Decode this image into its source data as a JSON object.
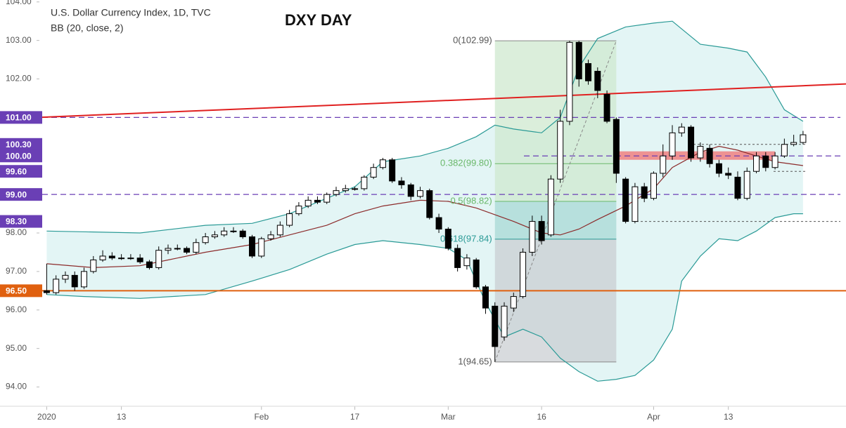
{
  "chart_data": {
    "type": "candlestick",
    "title": "U.S. Dollar Currency Index, 1D, TVC",
    "headline": "DXY DAY",
    "ylim": [
      93.5,
      104.05
    ],
    "xlim": [
      -5,
      85.6
    ],
    "yticks": [
      {
        "value": 94,
        "label": "94.00"
      },
      {
        "value": 95,
        "label": "95.00"
      },
      {
        "value": 96,
        "label": "96.00"
      },
      {
        "value": 97,
        "label": "97.00"
      },
      {
        "value": 98,
        "label": "98.00"
      },
      {
        "value": 99,
        "label": "99.00"
      },
      {
        "value": 100,
        "label": "100.00"
      },
      {
        "value": 101,
        "label": "101.00"
      },
      {
        "value": 102,
        "label": "102.00"
      },
      {
        "value": 103,
        "label": "103.00"
      },
      {
        "value": 104,
        "label": "104.00"
      }
    ],
    "xticks": [
      {
        "value": 0,
        "label": "2020"
      },
      {
        "value": 8,
        "label": "13"
      },
      {
        "value": 23,
        "label": "Feb"
      },
      {
        "value": 33,
        "label": "17"
      },
      {
        "value": 43,
        "label": "Mar"
      },
      {
        "value": 53,
        "label": "16"
      },
      {
        "value": 65,
        "label": "Apr"
      },
      {
        "value": 73,
        "label": "13"
      }
    ],
    "up_color": "#ffffff",
    "down_color": "#000000",
    "ohlc": {
      "open": [
        96.5,
        96.45,
        96.8,
        96.9,
        96.6,
        97.0,
        97.3,
        97.4,
        97.35,
        97.35,
        97.35,
        97.25,
        97.1,
        97.55,
        97.6,
        97.6,
        97.5,
        97.75,
        97.9,
        97.95,
        98.05,
        98.05,
        97.9,
        97.4,
        97.85,
        97.95,
        98.2,
        98.5,
        98.7,
        98.85,
        98.8,
        99.0,
        99.1,
        99.15,
        99.15,
        99.45,
        99.7,
        99.9,
        99.35,
        99.25,
        98.95,
        99.1,
        98.4,
        98.1,
        97.6,
        97.15,
        97.3,
        96.6,
        96.1,
        95.3,
        96.05,
        96.35,
        97.5,
        98.3,
        97.95,
        99.4,
        100.9,
        102.95,
        102.4,
        102.2,
        101.6,
        100.95,
        99.4,
        98.3,
        99.2,
        98.9,
        99.55,
        100.0,
        100.6,
        100.75,
        99.95,
        100.2,
        99.8,
        99.55,
        99.45,
        98.9,
        99.6,
        100.0,
        99.7,
        100.0,
        100.3,
        100.35
      ],
      "high": [
        97.2,
        96.9,
        97.0,
        97.0,
        97.1,
        97.4,
        97.55,
        97.5,
        97.45,
        97.45,
        97.45,
        97.3,
        97.65,
        97.7,
        97.7,
        97.65,
        97.85,
        98.0,
        98.05,
        98.15,
        98.15,
        98.1,
        97.95,
        97.9,
        98.05,
        98.3,
        98.6,
        98.8,
        98.95,
        98.95,
        99.05,
        99.2,
        99.25,
        99.2,
        99.5,
        99.8,
        99.95,
        99.95,
        99.45,
        99.3,
        99.2,
        99.15,
        98.5,
        98.15,
        97.7,
        97.45,
        97.35,
        96.65,
        96.2,
        96.2,
        96.45,
        97.6,
        98.45,
        98.45,
        99.5,
        101.2,
        102.99,
        102.99,
        102.5,
        102.3,
        101.7,
        101.0,
        99.45,
        99.3,
        99.3,
        99.6,
        100.3,
        100.8,
        100.85,
        100.8,
        100.35,
        100.3,
        99.9,
        99.7,
        99.6,
        99.7,
        100.1,
        100.1,
        100.1,
        100.45,
        100.55,
        100.65
      ],
      "low": [
        96.4,
        96.4,
        96.7,
        96.5,
        96.55,
        96.95,
        97.25,
        97.3,
        97.3,
        97.3,
        97.2,
        97.05,
        97.05,
        97.45,
        97.55,
        97.45,
        97.45,
        97.7,
        97.85,
        97.9,
        98.0,
        97.85,
        97.35,
        97.35,
        97.8,
        97.9,
        98.15,
        98.45,
        98.65,
        98.75,
        98.75,
        98.95,
        99.05,
        99.1,
        99.1,
        99.4,
        99.65,
        99.3,
        99.15,
        98.85,
        98.9,
        98.35,
        98.0,
        97.55,
        97.0,
        97.05,
        96.55,
        95.9,
        94.65,
        95.2,
        95.95,
        96.3,
        97.4,
        97.7,
        97.9,
        99.3,
        100.8,
        101.8,
        101.85,
        101.5,
        100.85,
        99.3,
        98.25,
        98.25,
        98.8,
        98.85,
        99.45,
        99.9,
        100.5,
        99.85,
        99.85,
        99.7,
        99.45,
        99.4,
        98.85,
        98.85,
        99.55,
        99.6,
        99.65,
        99.95,
        100.25,
        100.3
      ],
      "close": [
        96.45,
        96.8,
        96.9,
        96.6,
        97.0,
        97.3,
        97.4,
        97.35,
        97.35,
        97.35,
        97.25,
        97.1,
        97.55,
        97.6,
        97.6,
        97.5,
        97.75,
        97.9,
        97.95,
        98.05,
        98.05,
        97.9,
        97.4,
        97.85,
        97.95,
        98.2,
        98.5,
        98.7,
        98.85,
        98.8,
        99.0,
        99.1,
        99.15,
        99.15,
        99.45,
        99.7,
        99.9,
        99.35,
        99.25,
        98.95,
        99.1,
        98.4,
        98.1,
        97.6,
        97.1,
        97.35,
        96.6,
        96.05,
        95.05,
        96.1,
        96.35,
        97.5,
        98.3,
        97.8,
        99.4,
        100.9,
        102.95,
        102.0,
        101.95,
        101.7,
        100.9,
        99.55,
        98.3,
        99.2,
        98.9,
        99.55,
        100.0,
        100.6,
        100.75,
        99.95,
        100.25,
        99.8,
        99.55,
        99.5,
        98.9,
        99.6,
        100.0,
        99.7,
        100.0,
        100.3,
        100.35,
        100.55
      ]
    },
    "bollinger": {
      "label": "BB (20, close, 2)",
      "band_color": "#2a9a96",
      "basis_color": "#8c2b2b",
      "fill_color": "#e3f5f5",
      "upper": {
        "x": [
          0,
          10,
          17,
          22,
          26,
          30,
          33,
          36,
          40,
          43,
          46,
          48,
          50,
          53,
          55,
          57,
          59,
          62,
          65,
          67,
          68,
          70,
          73,
          75,
          77,
          79,
          81
        ],
        "values": [
          98.05,
          98.0,
          98.2,
          98.25,
          98.5,
          98.9,
          99.2,
          99.85,
          100.0,
          100.2,
          100.5,
          100.8,
          100.7,
          100.6,
          101.0,
          102.3,
          103.05,
          103.35,
          103.45,
          103.5,
          103.3,
          102.9,
          102.8,
          102.7,
          102.05,
          101.2,
          100.9
        ]
      },
      "basis": {
        "x": [
          0,
          5,
          10,
          13,
          17,
          22,
          26,
          30,
          33,
          36,
          40,
          43,
          46,
          50,
          53,
          55,
          57,
          59,
          62,
          65,
          67,
          70,
          72,
          74,
          76,
          78,
          81
        ],
        "values": [
          97.2,
          97.1,
          97.15,
          97.3,
          97.5,
          97.7,
          97.95,
          98.2,
          98.5,
          98.7,
          98.85,
          98.82,
          98.65,
          98.3,
          98.0,
          97.95,
          98.1,
          98.35,
          98.7,
          99.15,
          99.7,
          100.1,
          100.25,
          100.15,
          100.0,
          99.85,
          99.75
        ]
      },
      "lower": {
        "x": [
          0,
          4,
          10,
          17,
          22,
          26,
          30,
          33,
          36,
          40,
          43,
          45,
          47,
          49,
          51,
          53,
          55,
          57,
          59,
          61,
          63,
          65,
          67,
          68,
          70,
          72,
          74,
          76,
          78,
          80,
          81
        ],
        "values": [
          96.4,
          96.35,
          96.3,
          96.4,
          96.75,
          97.05,
          97.45,
          97.7,
          97.8,
          97.7,
          97.6,
          97.3,
          96.2,
          95.3,
          95.5,
          95.3,
          94.75,
          94.4,
          94.15,
          94.2,
          94.3,
          94.7,
          95.5,
          96.75,
          97.4,
          97.85,
          97.8,
          98.05,
          98.4,
          98.5,
          98.5
        ]
      }
    },
    "levels": [
      {
        "value": 101,
        "label": "101.00",
        "color": "#6a3fb5",
        "line": "dashed"
      },
      {
        "value": 100.3,
        "label": "100.30",
        "color": "#6a3fb5",
        "line": "dotted"
      },
      {
        "value": 100,
        "label": "100.00",
        "color": "#6a3fb5",
        "line": "dashed"
      },
      {
        "value": 99.6,
        "label": "99.60",
        "color": "#6a3fb5",
        "line": "dotted"
      },
      {
        "value": 99,
        "label": "99.00",
        "color": "#6a3fb5",
        "line": "dashed"
      },
      {
        "value": 98.3,
        "label": "98.30",
        "color": "#6a3fb5",
        "line": "dotted"
      },
      {
        "value": 96.5,
        "label": "96.50",
        "color": "#e0600f",
        "line": "solid"
      }
    ],
    "trendline": {
      "start": 100.96,
      "end": 101.87,
      "color": "#e02020"
    },
    "zone": {
      "from": 61,
      "to": 78,
      "low": 99.9,
      "high": 100.12,
      "color": "#f08080"
    },
    "fib": {
      "from": 48,
      "to": 61,
      "levels": [
        {
          "ratio": 0,
          "value": 102.99,
          "label": "0(102.99)"
        },
        {
          "ratio": 0.382,
          "value": 99.8,
          "label": "0.382(99.80)"
        },
        {
          "ratio": 0.5,
          "value": 98.82,
          "label": "0.5(98.82)"
        },
        {
          "ratio": 0.618,
          "value": 97.84,
          "label": "0.618(97.84)"
        },
        {
          "ratio": 1,
          "value": 94.65,
          "label": "1(94.65)"
        }
      ]
    }
  }
}
